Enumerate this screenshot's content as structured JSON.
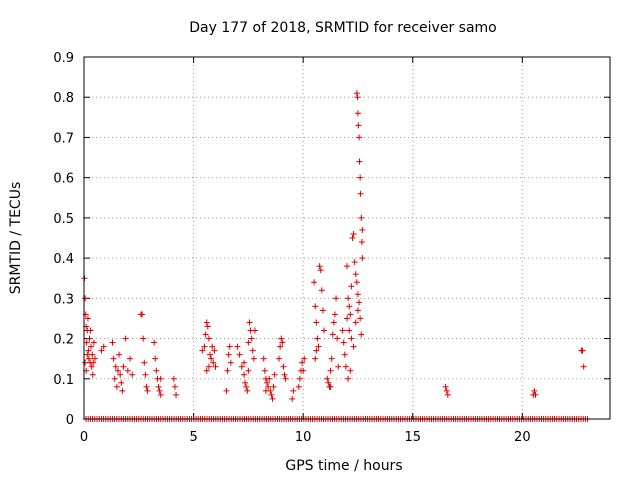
{
  "chart_data": {
    "type": "scatter",
    "title": "Day 177 of 2018, SRMTID for receiver samo",
    "xlabel": "GPS time / hours",
    "ylabel": "SRMTID / TECUs",
    "xlim": [
      0,
      24
    ],
    "ylim": [
      0,
      0.9
    ],
    "x_ticks": [
      0,
      5,
      10,
      15,
      20
    ],
    "x_tick_labels": [
      "0",
      "5",
      "10",
      "15",
      "20"
    ],
    "y_ticks": [
      0,
      0.1,
      0.2,
      0.3,
      0.4,
      0.5,
      0.6,
      0.7,
      0.8,
      0.9
    ],
    "y_tick_labels": [
      "0",
      "0.1",
      "0.2",
      "0.3",
      "0.4",
      "0.5",
      "0.6",
      "0.7",
      "0.8",
      "0.9"
    ],
    "grid": true,
    "marker": "+",
    "color": "#e00000",
    "series": [
      {
        "name": "SRMTID",
        "points": [
          [
            0.02,
            0.35
          ],
          [
            0.05,
            0.3
          ],
          [
            0.08,
            0.26
          ],
          [
            0.1,
            0.23
          ],
          [
            0.12,
            0.19
          ],
          [
            0.15,
            0.22
          ],
          [
            0.18,
            0.25
          ],
          [
            0.2,
            0.17
          ],
          [
            0.22,
            0.15
          ],
          [
            0.25,
            0.2
          ],
          [
            0.28,
            0.14
          ],
          [
            0.3,
            0.22
          ],
          [
            0.32,
            0.18
          ],
          [
            0.35,
            0.13
          ],
          [
            0.38,
            0.16
          ],
          [
            0.4,
            0.11
          ],
          [
            0.42,
            0.14
          ],
          [
            0.45,
            0.19
          ],
          [
            0.5,
            0.15
          ],
          [
            0.05,
            0.14
          ],
          [
            0.1,
            0.12
          ],
          [
            0.15,
            0.16
          ],
          [
            0.8,
            0.17
          ],
          [
            0.9,
            0.18
          ],
          [
            1.3,
            0.19
          ],
          [
            1.35,
            0.15
          ],
          [
            1.4,
            0.1
          ],
          [
            1.45,
            0.13
          ],
          [
            1.5,
            0.08
          ],
          [
            1.55,
            0.12
          ],
          [
            1.6,
            0.16
          ],
          [
            1.65,
            0.11
          ],
          [
            1.7,
            0.09
          ],
          [
            1.75,
            0.07
          ],
          [
            1.8,
            0.13
          ],
          [
            1.9,
            0.2
          ],
          [
            2.0,
            0.12
          ],
          [
            2.1,
            0.15
          ],
          [
            2.2,
            0.11
          ],
          [
            2.6,
            0.26
          ],
          [
            2.65,
            0.26
          ],
          [
            2.7,
            0.2
          ],
          [
            2.75,
            0.14
          ],
          [
            2.8,
            0.11
          ],
          [
            2.85,
            0.08
          ],
          [
            2.9,
            0.07
          ],
          [
            3.2,
            0.19
          ],
          [
            3.25,
            0.15
          ],
          [
            3.3,
            0.12
          ],
          [
            3.35,
            0.1
          ],
          [
            3.4,
            0.08
          ],
          [
            3.45,
            0.07
          ],
          [
            3.5,
            0.06
          ],
          [
            3.5,
            0.1
          ],
          [
            4.1,
            0.1
          ],
          [
            4.15,
            0.08
          ],
          [
            4.2,
            0.06
          ],
          [
            5.4,
            0.17
          ],
          [
            5.5,
            0.18
          ],
          [
            5.55,
            0.21
          ],
          [
            5.6,
            0.24
          ],
          [
            5.65,
            0.23
          ],
          [
            5.7,
            0.2
          ],
          [
            5.75,
            0.16
          ],
          [
            5.8,
            0.15
          ],
          [
            5.85,
            0.18
          ],
          [
            5.9,
            0.14
          ],
          [
            5.95,
            0.17
          ],
          [
            6.0,
            0.13
          ],
          [
            5.7,
            0.13
          ],
          [
            5.6,
            0.12
          ],
          [
            6.5,
            0.07
          ],
          [
            6.55,
            0.12
          ],
          [
            6.6,
            0.16
          ],
          [
            6.65,
            0.18
          ],
          [
            6.7,
            0.14
          ],
          [
            7.0,
            0.18
          ],
          [
            7.1,
            0.16
          ],
          [
            7.2,
            0.13
          ],
          [
            7.3,
            0.11
          ],
          [
            7.35,
            0.09
          ],
          [
            7.4,
            0.08
          ],
          [
            7.45,
            0.07
          ],
          [
            7.5,
            0.19
          ],
          [
            7.55,
            0.24
          ],
          [
            7.6,
            0.22
          ],
          [
            7.65,
            0.2
          ],
          [
            7.7,
            0.17
          ],
          [
            7.75,
            0.15
          ],
          [
            7.8,
            0.22
          ],
          [
            7.3,
            0.14
          ],
          [
            7.5,
            0.12
          ],
          [
            8.2,
            0.15
          ],
          [
            8.25,
            0.12
          ],
          [
            8.3,
            0.1
          ],
          [
            8.35,
            0.09
          ],
          [
            8.4,
            0.08
          ],
          [
            8.45,
            0.1
          ],
          [
            8.5,
            0.07
          ],
          [
            8.55,
            0.06
          ],
          [
            8.6,
            0.05
          ],
          [
            8.65,
            0.08
          ],
          [
            8.7,
            0.11
          ],
          [
            8.3,
            0.07
          ],
          [
            8.9,
            0.15
          ],
          [
            8.95,
            0.18
          ],
          [
            9.0,
            0.2
          ],
          [
            9.05,
            0.19
          ],
          [
            9.1,
            0.13
          ],
          [
            9.15,
            0.11
          ],
          [
            9.2,
            0.1
          ],
          [
            9.5,
            0.05
          ],
          [
            9.55,
            0.07
          ],
          [
            9.8,
            0.08
          ],
          [
            9.85,
            0.1
          ],
          [
            9.9,
            0.12
          ],
          [
            9.95,
            0.14
          ],
          [
            10.0,
            0.12
          ],
          [
            10.05,
            0.15
          ],
          [
            10.5,
            0.34
          ],
          [
            10.55,
            0.28
          ],
          [
            10.6,
            0.24
          ],
          [
            10.65,
            0.2
          ],
          [
            10.7,
            0.18
          ],
          [
            10.75,
            0.38
          ],
          [
            10.8,
            0.37
          ],
          [
            10.85,
            0.32
          ],
          [
            10.9,
            0.27
          ],
          [
            10.95,
            0.22
          ],
          [
            10.6,
            0.17
          ],
          [
            10.55,
            0.15
          ],
          [
            11.1,
            0.1
          ],
          [
            11.15,
            0.09
          ],
          [
            11.2,
            0.08
          ],
          [
            11.25,
            0.12
          ],
          [
            11.3,
            0.15
          ],
          [
            11.35,
            0.21
          ],
          [
            11.4,
            0.24
          ],
          [
            11.45,
            0.26
          ],
          [
            11.5,
            0.3
          ],
          [
            11.55,
            0.2
          ],
          [
            11.6,
            0.13
          ],
          [
            11.25,
            0.08
          ],
          [
            11.8,
            0.22
          ],
          [
            11.85,
            0.19
          ],
          [
            11.9,
            0.16
          ],
          [
            11.95,
            0.13
          ],
          [
            12.0,
            0.38
          ],
          [
            12.05,
            0.3
          ],
          [
            12.1,
            0.28
          ],
          [
            12.15,
            0.26
          ],
          [
            12.2,
            0.33
          ],
          [
            12.25,
            0.45
          ],
          [
            12.3,
            0.46
          ],
          [
            12.35,
            0.39
          ],
          [
            12.4,
            0.36
          ],
          [
            12.45,
            0.34
          ],
          [
            12.5,
            0.31
          ],
          [
            12.55,
            0.29
          ],
          [
            12.6,
            0.25
          ],
          [
            12.65,
            0.21
          ],
          [
            12.7,
            0.47
          ],
          [
            12.0,
            0.25
          ],
          [
            12.1,
            0.22
          ],
          [
            12.2,
            0.2
          ],
          [
            12.3,
            0.18
          ],
          [
            12.4,
            0.24
          ],
          [
            12.5,
            0.27
          ],
          [
            12.05,
            0.1
          ],
          [
            12.15,
            0.12
          ],
          [
            12.45,
            0.81
          ],
          [
            12.48,
            0.8
          ],
          [
            12.5,
            0.76
          ],
          [
            12.52,
            0.73
          ],
          [
            12.55,
            0.7
          ],
          [
            12.57,
            0.64
          ],
          [
            12.6,
            0.6
          ],
          [
            12.62,
            0.56
          ],
          [
            12.65,
            0.5
          ],
          [
            12.68,
            0.44
          ],
          [
            12.7,
            0.4
          ],
          [
            16.5,
            0.08
          ],
          [
            16.55,
            0.07
          ],
          [
            16.6,
            0.06
          ],
          [
            20.5,
            0.06
          ],
          [
            20.55,
            0.07
          ],
          [
            20.6,
            0.06
          ],
          [
            22.7,
            0.17
          ],
          [
            22.75,
            0.17
          ],
          [
            22.8,
            0.13
          ]
        ],
        "zero_values_hours": [
          0.0,
          23.0
        ]
      }
    ]
  }
}
